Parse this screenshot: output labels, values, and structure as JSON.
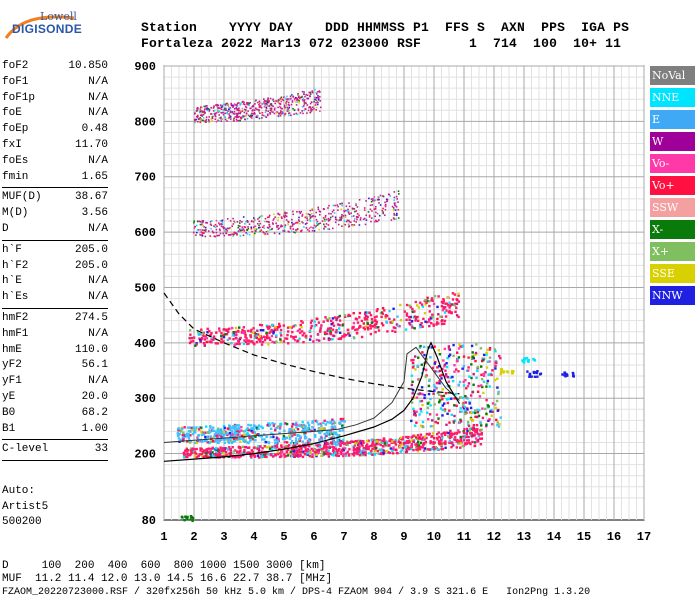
{
  "logo": {
    "top": "Lowell",
    "name": "DIGISONDE"
  },
  "header": {
    "line1": "Station    YYYY DAY    DDD HHMMSS P1  FFS S  AXN  PPS  IGA PS",
    "line2": "Fortaleza 2022 Mar13 072 023000 RSF      1  714  100  10+ 11"
  },
  "params": [
    [
      [
        "foF2",
        "10.850"
      ],
      [
        "foF1",
        "N/A"
      ],
      [
        "foF1p",
        "N/A"
      ],
      [
        "foE",
        "N/A"
      ],
      [
        "foEp",
        "0.48"
      ],
      [
        "fxI",
        "11.70"
      ],
      [
        "foEs",
        "N/A"
      ],
      [
        "fmin",
        "1.65"
      ]
    ],
    [
      [
        "MUF(D)",
        "38.67"
      ],
      [
        "M(D)",
        "3.56"
      ],
      [
        "D",
        "N/A"
      ]
    ],
    [
      [
        "h`F",
        "205.0"
      ],
      [
        "h`F2",
        "205.0"
      ],
      [
        "h`E",
        "N/A"
      ],
      [
        "h`Es",
        "N/A"
      ]
    ],
    [
      [
        "hmF2",
        "274.5"
      ],
      [
        "hmF1",
        "N/A"
      ],
      [
        "hmE",
        "110.0"
      ],
      [
        "yF2",
        "56.1"
      ],
      [
        "yF1",
        "N/A"
      ],
      [
        "yE",
        "20.0"
      ],
      [
        "B0",
        "68.2"
      ],
      [
        "B1",
        "1.00"
      ]
    ],
    [
      [
        "C-level",
        "33"
      ]
    ]
  ],
  "autoscale": {
    "line1": "Auto:",
    "line2": "Artist5",
    "line3": "500200"
  },
  "footer": {
    "d_line": "D     100  200  400  600  800 1000 1500 3000 [km]",
    "muf_line": "MUF  11.2 11.4 12.0 13.0 14.5 16.6 22.7 38.7 [MHz]",
    "file_line": "FZAOM_20220723000.RSF / 320fx256h 50 kHz 5.0 km / DPS-4 FZAOM 904 / 3.9 S 321.6 E   Ion2Png 1.3.20"
  },
  "legend": [
    {
      "label": "NoVal",
      "color": "#7f7f7f"
    },
    {
      "label": "NNE",
      "color": "#00e5ff"
    },
    {
      "label": "E",
      "color": "#3fa9f5"
    },
    {
      "label": "W",
      "color": "#a0009a"
    },
    {
      "label": "Vo-",
      "color": "#ff3aa8"
    },
    {
      "label": "Vo+",
      "color": "#ff1040"
    },
    {
      "label": "SSW",
      "color": "#f5a0a0"
    },
    {
      "label": "X-",
      "color": "#0a7a0a"
    },
    {
      "label": "X+",
      "color": "#7fbf5f"
    },
    {
      "label": "SSE",
      "color": "#d8d000"
    },
    {
      "label": "NNW",
      "color": "#2020e0"
    }
  ],
  "chart_data": {
    "type": "scatter",
    "xlim": [
      1,
      17
    ],
    "ylim": [
      80,
      900
    ],
    "xticks": [
      1,
      2,
      3,
      4,
      5,
      6,
      7,
      8,
      9,
      10,
      11,
      12,
      13,
      14,
      15,
      16,
      17
    ],
    "yticks": [
      80,
      200,
      300,
      400,
      500,
      600,
      700,
      800,
      900
    ],
    "grid": true,
    "legend_placement": "right",
    "echo_traces": [
      {
        "name": "o-trace",
        "color": "#ff1a6a",
        "h0": 200,
        "k": 0.011,
        "p": 3.2,
        "fmin": 1.6,
        "fmax": 11.6
      },
      {
        "name": "o-trace 2nd hop",
        "color": "#ff1a6a",
        "h0": 405,
        "k": 0.11,
        "p": 2.6,
        "fmin": 1.8,
        "fmax": 10.8
      },
      {
        "name": "spread",
        "color": "#40c0ff",
        "h0": 230,
        "k": 0.012,
        "p": 3.0,
        "fmin": 1.4,
        "fmax": 7.0
      },
      {
        "name": "3rd hop",
        "color": "#c0208a",
        "h0": 600,
        "k": 0.22,
        "p": 2.4,
        "fmin": 1.9,
        "fmax": 8.8
      },
      {
        "name": "4th hop",
        "color": "#c0208a",
        "h0": 805,
        "k": 0.5,
        "p": 2.2,
        "fmin": 2.0,
        "fmax": 6.2
      }
    ],
    "virtual_height_curve": [
      [
        1,
        186
      ],
      [
        2,
        190
      ],
      [
        3,
        194
      ],
      [
        4,
        200
      ],
      [
        5,
        208
      ],
      [
        6,
        218
      ],
      [
        7,
        232
      ],
      [
        8,
        248
      ],
      [
        8.6,
        262
      ],
      [
        9.0,
        278
      ],
      [
        9.3,
        300
      ],
      [
        9.6,
        340
      ],
      [
        9.8,
        388
      ],
      [
        9.9,
        400
      ],
      [
        10.1,
        375
      ],
      [
        10.4,
        330
      ],
      [
        10.85,
        290
      ]
    ],
    "profile_curve": [
      [
        1,
        220
      ],
      [
        2,
        224
      ],
      [
        3,
        228
      ],
      [
        4,
        232
      ],
      [
        5,
        236
      ],
      [
        6,
        240
      ],
      [
        6.8,
        244
      ],
      [
        7.4,
        252
      ],
      [
        8.0,
        264
      ],
      [
        8.6,
        292
      ],
      [
        9.0,
        330
      ],
      [
        9.1,
        380
      ],
      [
        9.4,
        392
      ],
      [
        9.9,
        355
      ],
      [
        10.4,
        318
      ],
      [
        10.85,
        296
      ]
    ],
    "muf_curve": [
      [
        1,
        490
      ],
      [
        1.5,
        452
      ],
      [
        2,
        425
      ],
      [
        3,
        400
      ],
      [
        4,
        378
      ],
      [
        5,
        362
      ],
      [
        6,
        348
      ],
      [
        7,
        336
      ],
      [
        8,
        326
      ],
      [
        9,
        318
      ],
      [
        10,
        312
      ],
      [
        10.85,
        308
      ]
    ],
    "blobs": [
      {
        "f": 1.7,
        "h": 85,
        "color": "#0a7a0a"
      },
      {
        "f": 13.3,
        "h": 346,
        "color": "#2020e0"
      },
      {
        "f": 14.4,
        "h": 346,
        "color": "#2020e0"
      },
      {
        "f": 12.4,
        "h": 350,
        "color": "#d8d000"
      },
      {
        "f": 13.1,
        "h": 370,
        "color": "#00e5ff"
      }
    ]
  }
}
